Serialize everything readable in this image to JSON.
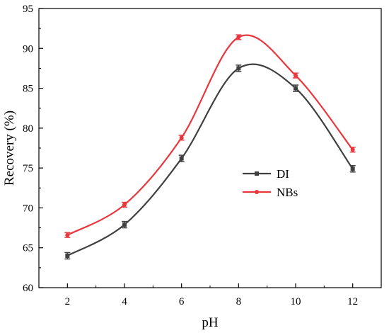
{
  "chart_data": {
    "type": "line",
    "xlabel": "pH",
    "ylabel": "Recovery (%)",
    "x": [
      2,
      4,
      6,
      8,
      10,
      12
    ],
    "xlim": [
      1,
      13
    ],
    "ylim": [
      60,
      95
    ],
    "xticks": [
      "2",
      "4",
      "6",
      "8",
      "10",
      "12"
    ],
    "yticks": [
      "60",
      "65",
      "70",
      "75",
      "80",
      "85",
      "90",
      "95"
    ],
    "grid": false,
    "legend_position": "center-right",
    "smoothed": true,
    "error_bars": true,
    "series": [
      {
        "name": "DI",
        "color": "#404040",
        "values": [
          64.0,
          67.9,
          76.2,
          87.5,
          85.0,
          74.9
        ],
        "errors": [
          0.4,
          0.4,
          0.4,
          0.4,
          0.4,
          0.4
        ]
      },
      {
        "name": "NBs",
        "color": "#e8383d",
        "values": [
          66.6,
          70.4,
          78.8,
          91.4,
          86.6,
          77.3
        ],
        "errors": [
          0.3,
          0.3,
          0.3,
          0.3,
          0.3,
          0.3
        ]
      }
    ]
  }
}
